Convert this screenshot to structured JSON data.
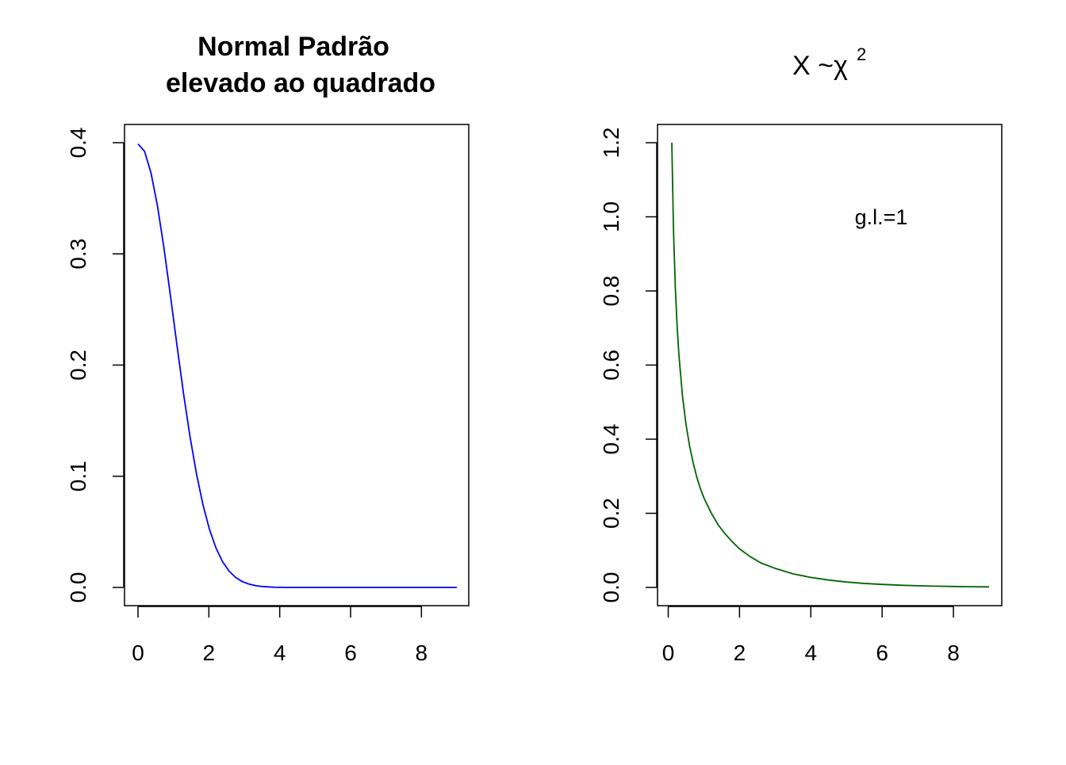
{
  "chart_data": [
    {
      "type": "line",
      "title_lines": [
        "Normal Padrão",
        "elevado ao quadrado"
      ],
      "xlabel": "",
      "ylabel": "",
      "xlim": [
        0,
        9
      ],
      "ylim": [
        0,
        0.4
      ],
      "xticks": [
        "0",
        "2",
        "4",
        "6",
        "8"
      ],
      "yticks": [
        "0.0",
        "0.1",
        "0.2",
        "0.3",
        "0.4"
      ],
      "grid": false,
      "series": [
        {
          "color": "#0000ff",
          "x": [
            0,
            0.1837,
            0.3673,
            0.551,
            0.7347,
            0.9184,
            1.102,
            1.286,
            1.469,
            1.653,
            1.837,
            2.02,
            2.204,
            2.388,
            2.571,
            2.755,
            2.939,
            3.122,
            3.306,
            3.49,
            3.673,
            3.857,
            4.041,
            4.224,
            4.408,
            4.592,
            4.776,
            4.959,
            5.143,
            5.327,
            5.51,
            5.694,
            5.878,
            6.061,
            6.245,
            6.429,
            6.612,
            6.796,
            6.98,
            7.163,
            7.347,
            7.531,
            7.714,
            7.898,
            8.082,
            8.265,
            8.449,
            8.633,
            8.816,
            9
          ],
          "y": [
            0.3989,
            0.3923,
            0.3727,
            0.3429,
            0.3047,
            0.2617,
            0.2173,
            0.1741,
            0.1354,
            0.1018,
            0.0739,
            0.0519,
            0.0352,
            0.0231,
            0.0147,
            0.009,
            0.0053,
            0.0031,
            0.0017,
            0.0009,
            0.0005,
            0.0002,
            0.0001,
            0,
            0,
            0,
            0,
            0,
            0,
            0,
            0,
            0,
            0,
            0,
            0,
            0,
            0,
            0,
            0,
            0,
            0,
            0,
            0,
            0,
            0,
            0,
            0,
            0,
            0,
            0
          ]
        }
      ]
    },
    {
      "type": "line",
      "title_main": "X ~χ",
      "title_sup": "2",
      "xlabel": "",
      "ylabel": "",
      "xlim": [
        0.1,
        9
      ],
      "ylim": [
        0,
        1.2
      ],
      "xticks": [
        "0",
        "2",
        "4",
        "6",
        "8"
      ],
      "yticks": [
        "0.0",
        "0.2",
        "0.4",
        "0.6",
        "0.8",
        "1.0",
        "1.2"
      ],
      "grid": false,
      "annotation": "g.l.=1",
      "series": [
        {
          "color": "#006400",
          "x": [
            0.1,
            0.15,
            0.2,
            0.25,
            0.3,
            0.4,
            0.5,
            0.6,
            0.7,
            0.8,
            0.9,
            1,
            1.2,
            1.4,
            1.6,
            1.8,
            2,
            2.3,
            2.6,
            3,
            3.5,
            4,
            4.5,
            5,
            5.5,
            6,
            6.5,
            7,
            7.5,
            8,
            8.5,
            9
          ],
          "y": [
            1.2,
            0.955,
            0.807,
            0.704,
            0.627,
            0.516,
            0.439,
            0.381,
            0.336,
            0.298,
            0.267,
            0.242,
            0.202,
            0.169,
            0.144,
            0.123,
            0.104,
            0.083,
            0.066,
            0.0514,
            0.0366,
            0.027,
            0.0199,
            0.0146,
            0.0108,
            0.0081,
            0.006,
            0.0045,
            0.0034,
            0.0025,
            0.0019,
            0.0015
          ]
        }
      ]
    }
  ]
}
